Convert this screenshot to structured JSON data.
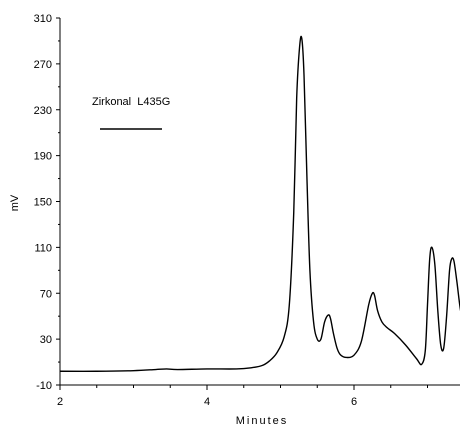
{
  "chart_data": {
    "type": "line",
    "title": "",
    "xlabel": "Minutes",
    "ylabel": "mV",
    "xlim": [
      2,
      7.5
    ],
    "ylim": [
      -10,
      310
    ],
    "x_ticks": [
      2,
      4,
      6
    ],
    "y_ticks": [
      -10,
      30,
      70,
      110,
      150,
      190,
      230,
      270,
      310
    ],
    "grid": false,
    "legend_position": "top-left",
    "series": [
      {
        "name": "Zirkonal  L435G",
        "color": "#000000",
        "x": [
          2.0,
          2.5,
          3.0,
          3.3,
          3.45,
          3.6,
          4.0,
          4.4,
          4.6,
          4.75,
          4.85,
          4.95,
          5.05,
          5.12,
          5.18,
          5.22,
          5.26,
          5.29,
          5.32,
          5.36,
          5.4,
          5.45,
          5.5,
          5.55,
          5.6,
          5.65,
          5.68,
          5.72,
          5.77,
          5.82,
          5.9,
          6.0,
          6.1,
          6.2,
          6.25,
          6.28,
          6.32,
          6.38,
          6.45,
          6.55,
          6.7,
          6.85,
          6.92,
          6.97,
          7.0,
          7.03,
          7.06,
          7.1,
          7.14,
          7.18,
          7.22,
          7.26,
          7.3,
          7.33,
          7.36,
          7.4,
          7.45,
          7.5
        ],
        "y": [
          2,
          2,
          2.5,
          3.5,
          4,
          3.5,
          4,
          4,
          5,
          7,
          11,
          18,
          32,
          60,
          140,
          240,
          285,
          292,
          260,
          170,
          90,
          45,
          30,
          30,
          45,
          51,
          48,
          35,
          22,
          16,
          14,
          16,
          28,
          60,
          70,
          68,
          55,
          45,
          40,
          35,
          25,
          13,
          8,
          20,
          60,
          100,
          110,
          95,
          55,
          25,
          22,
          50,
          90,
          100,
          98,
          80,
          55,
          45
        ]
      }
    ]
  }
}
